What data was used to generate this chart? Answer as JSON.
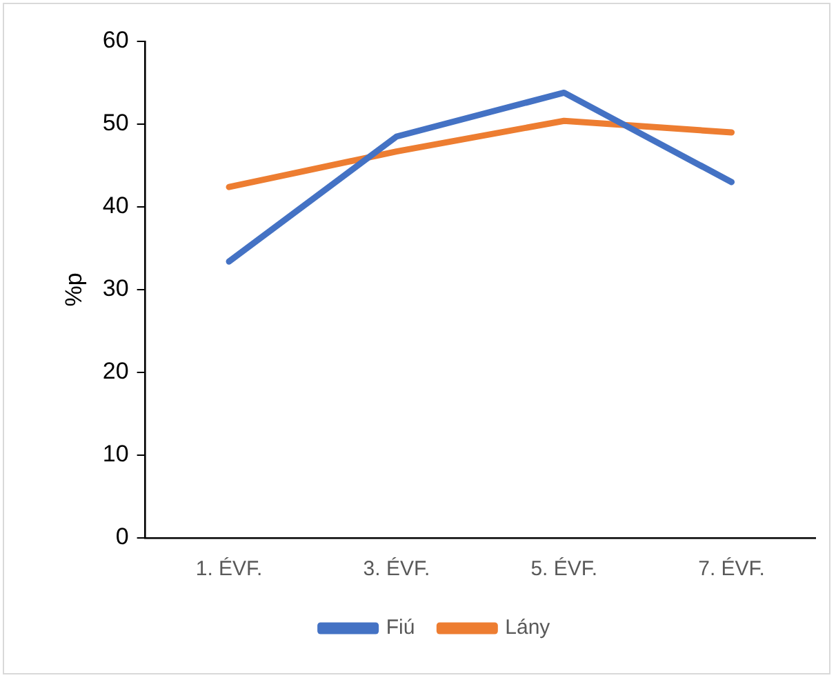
{
  "chart_data": {
    "type": "line",
    "ylabel": "%p",
    "categories": [
      "1. ÉVF.",
      "3. ÉVF.",
      "5. ÉVF.",
      "7. ÉVF."
    ],
    "series": [
      {
        "name": "Fiú",
        "color": "#4472c4",
        "values": [
          33.4,
          48.5,
          53.8,
          43.0
        ]
      },
      {
        "name": "Lány",
        "color": "#ed7d31",
        "values": [
          42.4,
          46.7,
          50.4,
          49.0
        ]
      }
    ],
    "ylim": [
      0,
      60
    ],
    "yticks": [
      0,
      10,
      20,
      30,
      40,
      50,
      60
    ],
    "grid": false,
    "legend": "bottom",
    "marker": "none",
    "line_style": "solid"
  }
}
